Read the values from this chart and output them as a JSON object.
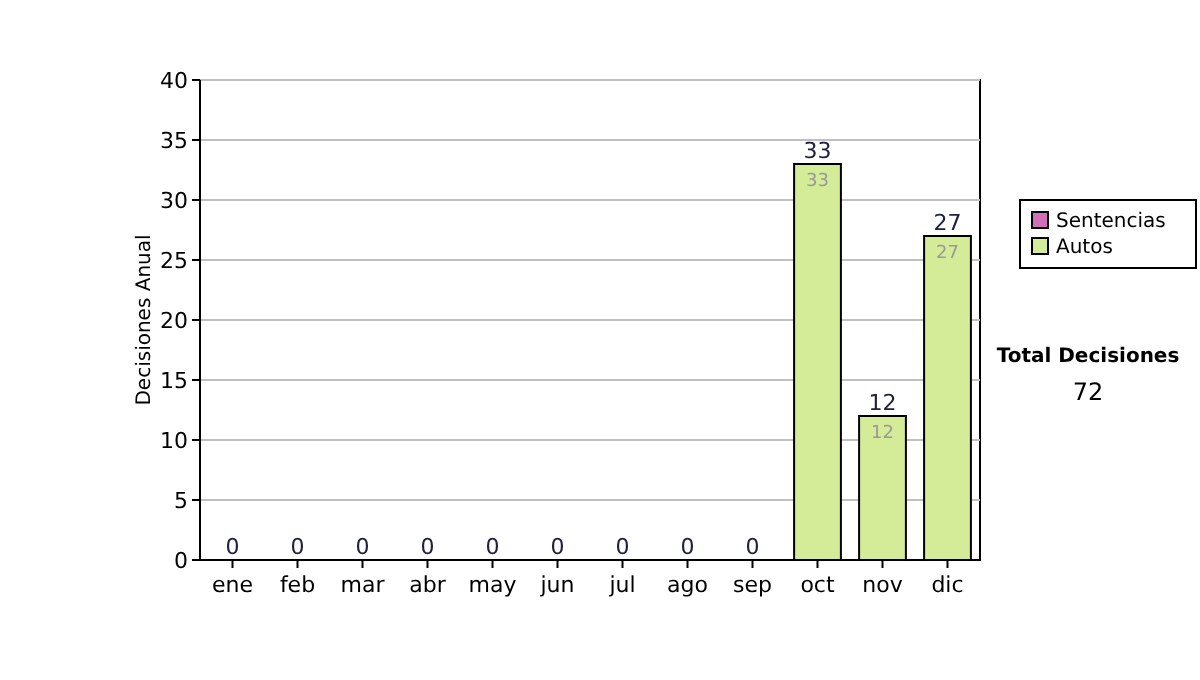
{
  "chart_data": {
    "type": "bar",
    "ylabel": "Decisiones Anual",
    "categories": [
      "ene",
      "feb",
      "mar",
      "abr",
      "may",
      "jun",
      "jul",
      "ago",
      "sep",
      "oct",
      "nov",
      "dic"
    ],
    "stacked": true,
    "series": [
      {
        "name": "Sentencias",
        "color": "#d070b8",
        "values": [
          0,
          0,
          0,
          0,
          0,
          0,
          0,
          0,
          0,
          0,
          0,
          0
        ]
      },
      {
        "name": "Autos",
        "color": "#d4ec98",
        "values": [
          0,
          0,
          0,
          0,
          0,
          0,
          0,
          0,
          0,
          33,
          12,
          27
        ],
        "value_labels": [
          null,
          null,
          null,
          null,
          null,
          null,
          null,
          null,
          null,
          "33",
          "12",
          "27"
        ]
      }
    ],
    "totals": [
      "0",
      "0",
      "0",
      "0",
      "0",
      "0",
      "0",
      "0",
      "0",
      "33",
      "12",
      "27"
    ],
    "ylim": [
      0,
      40
    ],
    "yticks": [
      0,
      5,
      10,
      15,
      20,
      25,
      30,
      35,
      40
    ],
    "grid": "y",
    "legend": "right",
    "annotations": [
      "Total Decisiones",
      "72"
    ]
  }
}
